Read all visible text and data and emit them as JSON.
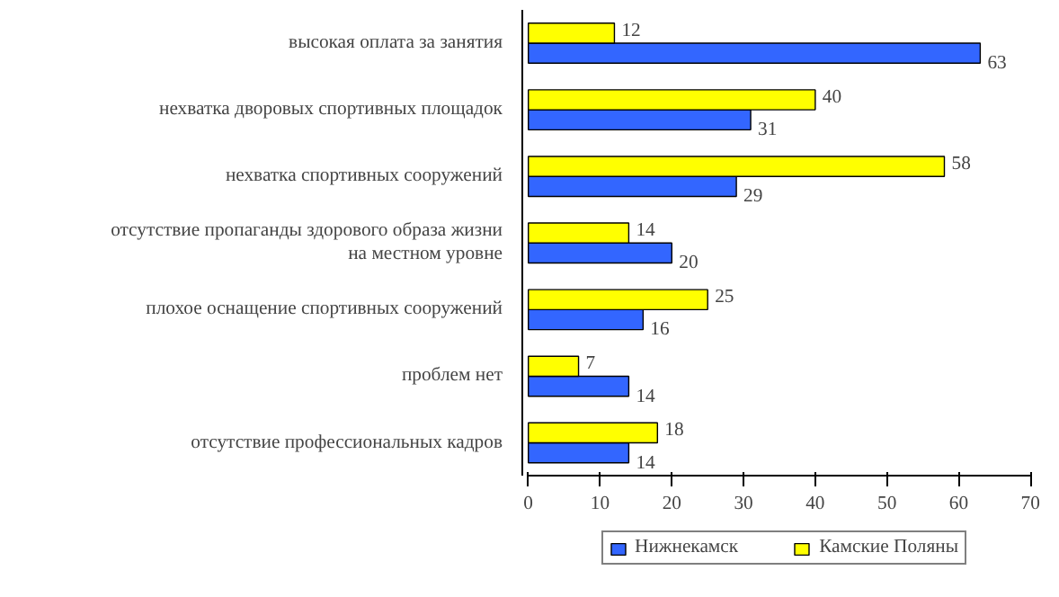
{
  "chart_data": {
    "type": "bar",
    "orientation": "horizontal",
    "categories": [
      "высокая оплата за занятия",
      "нехватка дворовых спортивных площадок",
      "нехватка спортивных сооружений",
      "отсутствие пропаганды здорового образа жизни на местном уровне",
      "плохое оснащение спортивных сооружений",
      "проблем нет",
      "отсутствие профессиональных кадров"
    ],
    "series": [
      {
        "name": "Нижнекамск",
        "color": "#3366ff",
        "values": [
          63,
          31,
          29,
          20,
          16,
          14,
          14
        ]
      },
      {
        "name": "Камские Поляны",
        "color": "#ffff00",
        "values": [
          12,
          40,
          58,
          14,
          25,
          7,
          18
        ]
      }
    ],
    "xlim": [
      0,
      70
    ],
    "xticks": [
      0,
      10,
      20,
      30,
      40,
      50,
      60,
      70
    ],
    "data_labels": true,
    "grid": false,
    "legend": "bottom"
  }
}
